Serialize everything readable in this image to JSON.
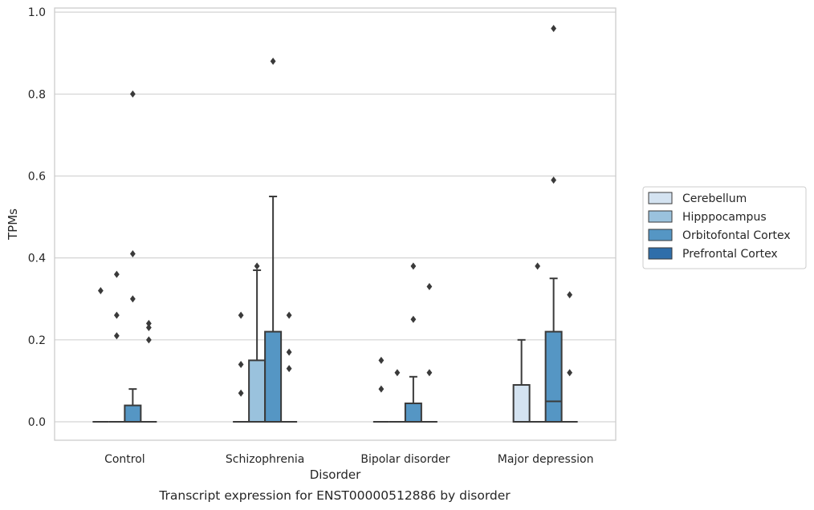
{
  "caption": "Transcript expression for ENST00000512886 by disorder",
  "chart_data": {
    "type": "box",
    "xlabel": "Disorder",
    "ylabel": "TPMs",
    "ylim": [
      -0.045,
      1.01
    ],
    "yticks": [
      0.0,
      0.2,
      0.4,
      0.6,
      0.8,
      1.0
    ],
    "ytick_labels": [
      "0.0",
      "0.2",
      "0.4",
      "0.6",
      "0.8",
      "1.0"
    ],
    "grid": "horizontal",
    "legend_placement": "right-outside",
    "categories": [
      "Control",
      "Schizophrenia",
      "Bipolar disorder",
      "Major depression"
    ],
    "series": [
      {
        "name": "Cerebellum",
        "color": "#d4e3f1",
        "boxes": [
          {
            "q1": 0,
            "median": 0,
            "q3": 0,
            "whislo": 0,
            "whishi": 0,
            "fliers": [
              0.32
            ]
          },
          {
            "q1": 0,
            "median": 0,
            "q3": 0,
            "whislo": 0,
            "whishi": 0,
            "fliers": [
              0.26,
              0.14,
              0.07
            ]
          },
          {
            "q1": 0,
            "median": 0,
            "q3": 0,
            "whislo": 0,
            "whishi": 0,
            "fliers": [
              0.15,
              0.08
            ]
          },
          {
            "q1": 0,
            "median": 0,
            "q3": 0.09,
            "whislo": 0,
            "whishi": 0.2,
            "fliers": []
          }
        ]
      },
      {
        "name": "Hipppocampus",
        "color": "#9ac2dd",
        "boxes": [
          {
            "q1": 0,
            "median": 0,
            "q3": 0,
            "whislo": 0,
            "whishi": 0,
            "fliers": [
              0.36,
              0.26,
              0.21
            ]
          },
          {
            "q1": 0,
            "median": 0,
            "q3": 0.15,
            "whislo": 0,
            "whishi": 0.37,
            "fliers": [
              0.38
            ]
          },
          {
            "q1": 0,
            "median": 0,
            "q3": 0,
            "whislo": 0,
            "whishi": 0,
            "fliers": [
              0.12
            ]
          },
          {
            "q1": 0,
            "median": 0,
            "q3": 0,
            "whislo": 0,
            "whishi": 0,
            "fliers": [
              0.38
            ]
          }
        ]
      },
      {
        "name": "Orbitofontal Cortex",
        "color": "#5596c4",
        "boxes": [
          {
            "q1": 0,
            "median": 0,
            "q3": 0.04,
            "whislo": 0,
            "whishi": 0.08,
            "fliers": [
              0.8,
              0.41,
              0.3
            ]
          },
          {
            "q1": 0,
            "median": 0,
            "q3": 0.22,
            "whislo": 0,
            "whishi": 0.55,
            "fliers": [
              0.88
            ]
          },
          {
            "q1": 0,
            "median": 0,
            "q3": 0.045,
            "whislo": 0,
            "whishi": 0.11,
            "fliers": [
              0.38,
              0.25
            ]
          },
          {
            "q1": 0,
            "median": 0.05,
            "q3": 0.22,
            "whislo": 0,
            "whishi": 0.35,
            "fliers": [
              0.96,
              0.59
            ]
          }
        ]
      },
      {
        "name": "Prefrontal Cortex",
        "color": "#2f6eaa",
        "boxes": [
          {
            "q1": 0,
            "median": 0,
            "q3": 0,
            "whislo": 0,
            "whishi": 0,
            "fliers": [
              0.24,
              0.23,
              0.2
            ]
          },
          {
            "q1": 0,
            "median": 0,
            "q3": 0,
            "whislo": 0,
            "whishi": 0,
            "fliers": [
              0.26,
              0.17,
              0.13
            ]
          },
          {
            "q1": 0,
            "median": 0,
            "q3": 0,
            "whislo": 0,
            "whishi": 0,
            "fliers": [
              0.33,
              0.12
            ]
          },
          {
            "q1": 0,
            "median": 0,
            "q3": 0,
            "whislo": 0,
            "whishi": 0,
            "fliers": [
              0.31,
              0.12
            ]
          }
        ]
      }
    ],
    "style": {
      "grid_color": "#d3d3d3",
      "frame_color": "#cccccc",
      "line_color": "#3a3a3a",
      "text_color": "#262626"
    }
  }
}
